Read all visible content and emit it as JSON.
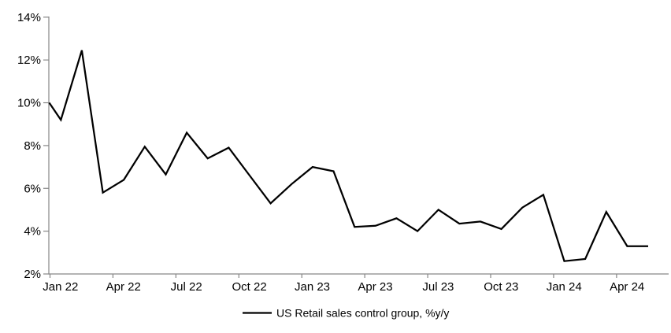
{
  "chart_data": {
    "type": "line",
    "title": "",
    "legend": {
      "label": "US Retail sales control group, %y/y",
      "position": "bottom-center",
      "marker": "line"
    },
    "x": [
      "Jan 22",
      "Feb 22",
      "Mar 22",
      "Apr 22",
      "May 22",
      "Jun 22",
      "Jul 22",
      "Aug 22",
      "Sep 22",
      "Oct 22",
      "Nov 22",
      "Dec 22",
      "Jan 23",
      "Feb 23",
      "Mar 23",
      "Apr 23",
      "May 23",
      "Jun 23",
      "Jul 23",
      "Aug 23",
      "Sep 23",
      "Oct 23",
      "Nov 23",
      "Dec 23",
      "Jan 24",
      "Feb 24",
      "Mar 24",
      "Apr 24",
      "May 24"
    ],
    "series": [
      {
        "name": "US Retail sales control group, %y/y",
        "values": [
          9.2,
          12.45,
          5.8,
          6.4,
          7.95,
          6.65,
          8.6,
          7.4,
          7.9,
          6.6,
          5.3,
          6.2,
          7.0,
          6.8,
          4.2,
          4.25,
          4.6,
          4.0,
          5.0,
          4.35,
          4.45,
          4.1,
          5.1,
          5.7,
          2.6,
          2.7,
          4.9,
          3.3,
          3.3
        ]
      }
    ],
    "line_enters_left_axis_at": 10.0,
    "x_axis": {
      "tick_labels": [
        "Jan 22",
        "Apr 22",
        "Jul 22",
        "Oct 22",
        "Jan 23",
        "Apr 23",
        "Jul 23",
        "Oct 23",
        "Jan 24",
        "Apr 24"
      ],
      "label_interval_months": 3,
      "tick_style": "between-categories"
    },
    "y_axis": {
      "tick_labels": [
        "2%",
        "4%",
        "6%",
        "8%",
        "10%",
        "12%",
        "14%"
      ],
      "tick_values": [
        2,
        4,
        6,
        8,
        10,
        12,
        14
      ],
      "min": 2,
      "max": 14,
      "unit": "%"
    },
    "grid": "off",
    "colors": {
      "line": "#000000",
      "axis": "#868686",
      "text": "#000000",
      "background": "#ffffff"
    }
  }
}
